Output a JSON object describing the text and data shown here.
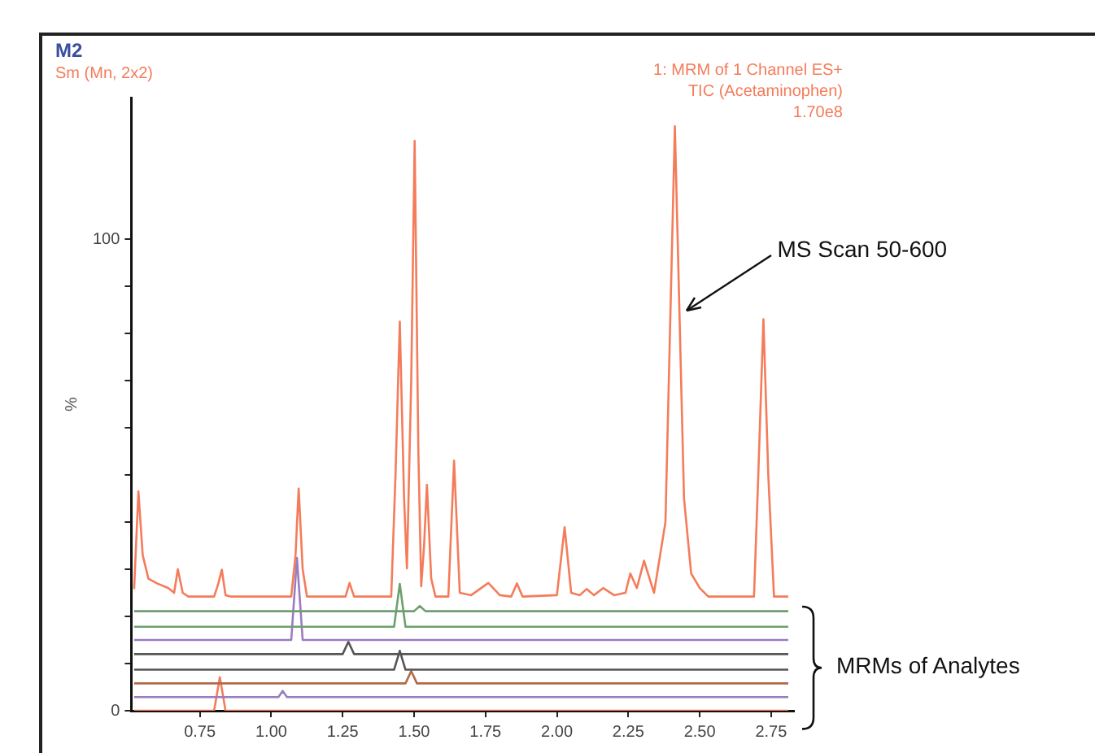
{
  "chart_data": {
    "type": "line",
    "title": "M2",
    "subtitle": "Sm (Mn, 2x2)",
    "ylabel": "%",
    "marker": "none",
    "legend": false,
    "xlim": [
      0.51,
      2.83
    ],
    "xticks": [
      0.75,
      {
        "value": 1,
        "label": "1.00"
      },
      1.25,
      {
        "value": 1.5,
        "label": "1.50"
      },
      1.75,
      {
        "value": 2,
        "label": "2.00"
      },
      2.25,
      {
        "value": 2.5,
        "label": "2.50"
      },
      2.75
    ],
    "ylim": [
      0,
      130
    ],
    "yticks": [
      0,
      {
        "value": 10,
        "label": null
      },
      {
        "value": 20,
        "label": null
      },
      {
        "value": 30,
        "label": null
      },
      {
        "value": 40,
        "label": null
      },
      {
        "value": 50,
        "label": null
      },
      {
        "value": 60,
        "label": null
      },
      {
        "value": 70,
        "label": null
      },
      {
        "value": 80,
        "label": null
      },
      {
        "value": 90,
        "label": null
      },
      100
    ],
    "annotations": [
      "1: MRM of 1 Channel ES+",
      "TIC (Acetaminophen)",
      "1.70e8",
      {
        "text": "MS Scan 50-600",
        "x": 2.43,
        "y": 84
      },
      "MRMs of Analytes"
    ],
    "series": [
      {
        "color": "#f47c5a",
        "x": [
          0.52,
          0.535,
          0.55,
          0.57,
          0.6,
          0.64,
          0.66,
          0.673,
          0.69,
          0.71,
          0.8,
          0.815,
          0.827,
          0.84,
          0.86,
          1.07,
          1.085,
          1.096,
          1.11,
          1.125,
          1.26,
          1.274,
          1.29,
          1.42,
          1.435,
          1.45,
          1.465,
          1.475,
          1.49,
          1.502,
          1.515,
          1.525,
          1.535,
          1.545,
          1.56,
          1.575,
          1.62,
          1.64,
          1.66,
          1.7,
          1.76,
          1.8,
          1.84,
          1.86,
          1.88,
          2.0,
          2.027,
          2.05,
          2.08,
          2.104,
          2.13,
          2.162,
          2.2,
          2.24,
          2.257,
          2.28,
          2.305,
          2.34,
          2.38,
          2.413,
          2.445,
          2.47,
          2.5,
          2.53,
          2.69,
          2.705,
          2.723,
          2.74,
          2.76,
          2.81
        ],
        "values": [
          25.8,
          46.5,
          33,
          28,
          27,
          26,
          25,
          30.0,
          25,
          24.2,
          24.2,
          27,
          29.9,
          24.5,
          24.2,
          24.2,
          33,
          47.1,
          30,
          24.2,
          24.2,
          27.1,
          24.2,
          24.2,
          50,
          82.5,
          45,
          30.2,
          70,
          120.8,
          55,
          26.4,
          35,
          47.9,
          28,
          24.2,
          24.2,
          53.0,
          25,
          24.5,
          27.1,
          24.5,
          24.2,
          27.0,
          24.2,
          24.5,
          38.9,
          25,
          24.5,
          25.8,
          24.5,
          26,
          24.5,
          25,
          29.1,
          26,
          31.8,
          25,
          40,
          123.9,
          45,
          29.1,
          26,
          24.2,
          24.2,
          50,
          83.0,
          50,
          24.2,
          24.2
        ]
      },
      {
        "color": "#6f9f6f",
        "x": [
          0.52,
          1.5,
          1.52,
          1.54,
          2.81
        ],
        "values": [
          21.1,
          21.1,
          22.2,
          21.1,
          21.1
        ]
      },
      {
        "color": "#6f9f6f",
        "x": [
          0.52,
          1.43,
          1.45,
          1.47,
          2.81
        ],
        "values": [
          17.8,
          17.8,
          26.9,
          17.8,
          17.8
        ]
      },
      {
        "color": "#9a7cc0",
        "x": [
          0.52,
          1.07,
          1.09,
          1.11,
          2.81
        ],
        "values": [
          15,
          15,
          32.4,
          15,
          15
        ]
      },
      {
        "color": "#555555",
        "x": [
          0.52,
          1.25,
          1.27,
          1.29,
          2.81
        ],
        "values": [
          12,
          12,
          14.6,
          12,
          12
        ]
      },
      {
        "color": "#555555",
        "x": [
          0.52,
          1.43,
          1.45,
          1.47,
          2.81
        ],
        "values": [
          8.7,
          8.7,
          12.7,
          8.7,
          8.7
        ]
      },
      {
        "color": "#b06a4a",
        "x": [
          0.52,
          1.47,
          1.49,
          1.51,
          2.81
        ],
        "values": [
          5.8,
          5.8,
          8.4,
          5.8,
          5.8
        ]
      },
      {
        "color": "#9a7cc0",
        "x": [
          0.52,
          1.025,
          1.04,
          1.055,
          2.81
        ],
        "values": [
          2.9,
          2.9,
          4.2,
          2.9,
          2.9
        ]
      },
      {
        "color": "#f47c5a",
        "x": [
          0.52,
          0.8,
          0.82,
          0.84,
          2.81
        ],
        "values": [
          0,
          0,
          7.1,
          0,
          0
        ]
      }
    ]
  }
}
